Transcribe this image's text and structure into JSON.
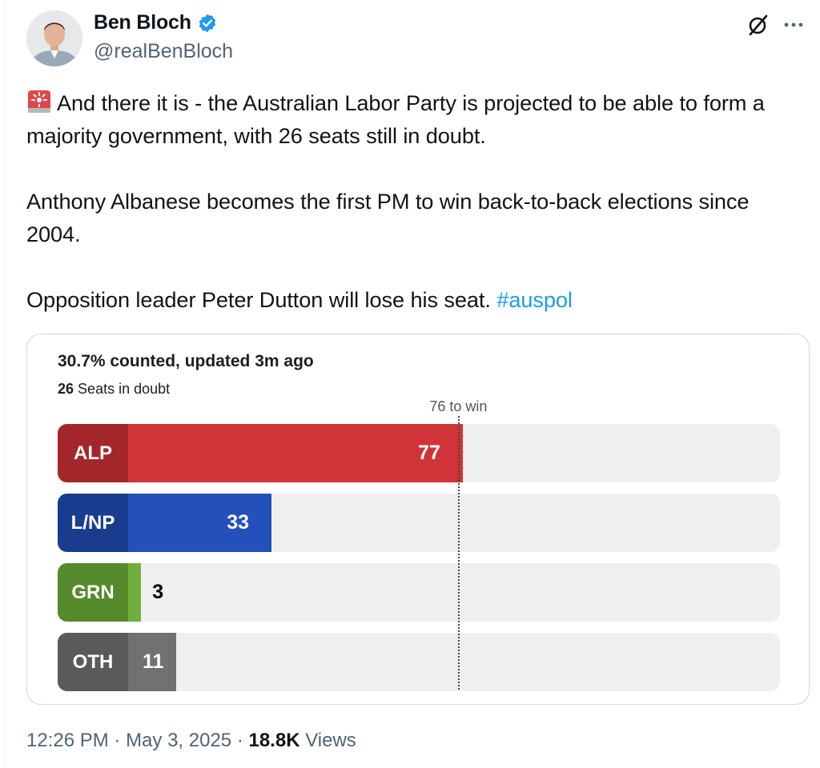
{
  "author": {
    "display_name": "Ben Bloch",
    "handle": "@realBenBloch",
    "verified_icon": "verified-badge-icon",
    "verified_color": "#1d9bf0"
  },
  "tweet": {
    "para1": "And there it is - the Australian Labor Party is projected to be able to form a majority government, with 26 seats still in doubt.",
    "para2": "Anthony Albanese becomes the first PM to win back-to-back elections since 2004.",
    "para3_text": "Opposition leader Peter Dutton will lose his seat.",
    "hashtag": "#auspol",
    "lead_icon": "siren-icon"
  },
  "chart_data": {
    "type": "bar",
    "orientation": "horizontal",
    "title": "30.7% counted, updated 3m ago",
    "subtitle_count": "26",
    "subtitle_text": "Seats in doubt",
    "threshold_label": "76 to win",
    "threshold": 76,
    "max_seats": 150,
    "categories": [
      "ALP",
      "L/NP",
      "GRN",
      "OTH"
    ],
    "values": [
      77,
      33,
      3,
      11
    ],
    "colors": [
      "#d13438",
      "#2350b9",
      "#6fae3c",
      "#717171"
    ],
    "label_colors": [
      "#a3262b",
      "#1a3c8e",
      "#558a2c",
      "#5a5a5a"
    ],
    "value_text_colors": [
      "#ffffff",
      "#ffffff",
      "#000000",
      "#ffffff"
    ]
  },
  "footer": {
    "time": "12:26 PM",
    "date": "May 3, 2025",
    "views_count": "18.8K",
    "views_label": "Views"
  }
}
